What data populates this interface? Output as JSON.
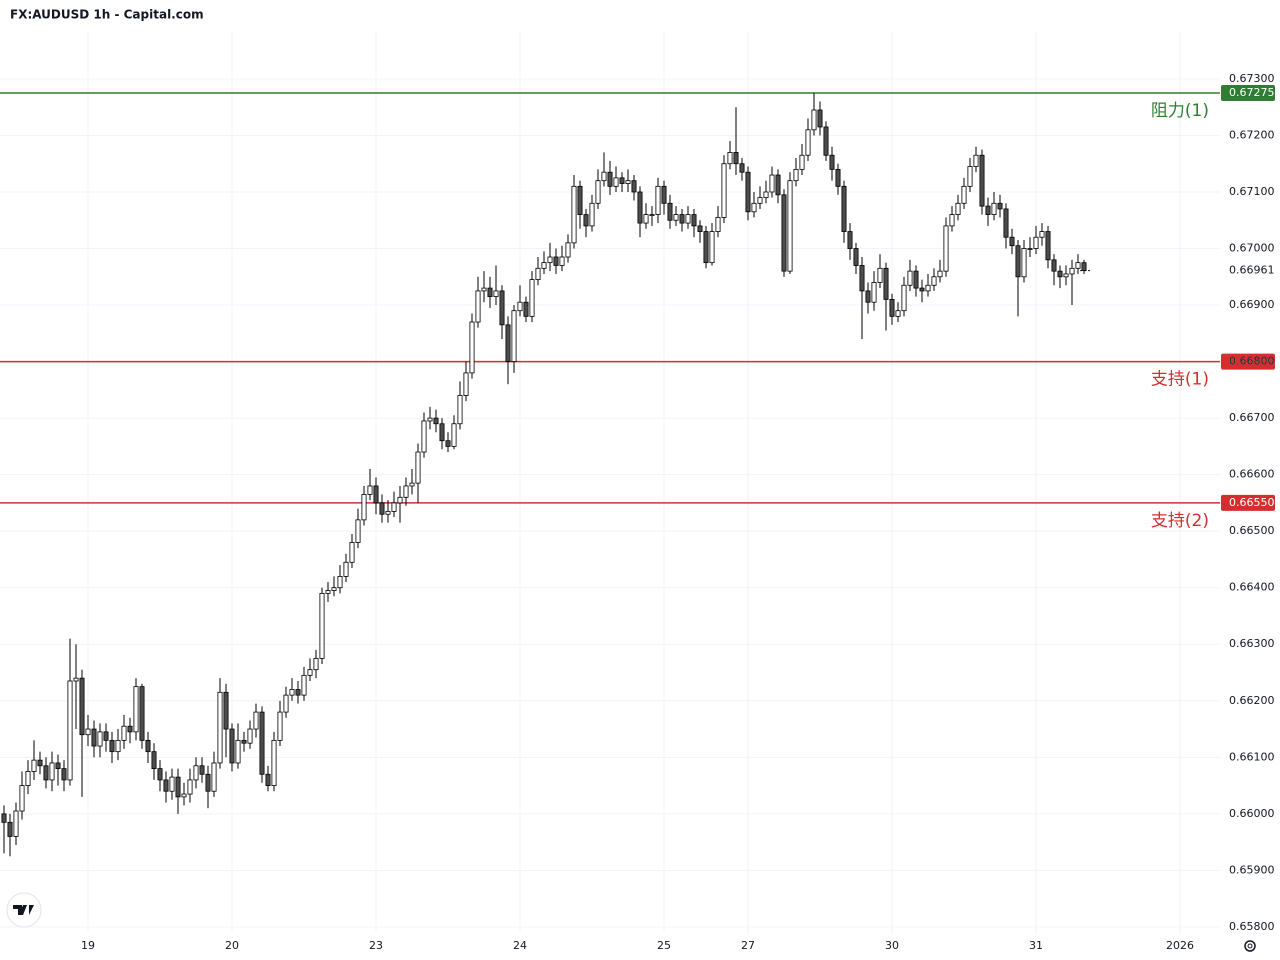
{
  "chart_data": {
    "type": "candlestick",
    "title": "FX:AUDUSD 1h - Capital.com",
    "up_color": "#ffffff",
    "down_color": "#4d4d4d",
    "wick_color": "#000000",
    "grid": true,
    "xlim": [
      -0.667,
      202.667
    ],
    "xticks": [
      {
        "value": 14,
        "label": "19"
      },
      {
        "value": 38,
        "label": "20"
      },
      {
        "value": 62,
        "label": "23"
      },
      {
        "value": 86,
        "label": "24"
      },
      {
        "value": 110,
        "label": "25"
      },
      {
        "value": 124,
        "label": "27"
      },
      {
        "value": 148,
        "label": "30"
      },
      {
        "value": 172,
        "label": "31"
      },
      {
        "value": 196,
        "label": "2026"
      }
    ],
    "ylim": [
      0.65791,
      0.67383
    ],
    "yticks": [
      {
        "value": 0.658,
        "label": "0.65800"
      },
      {
        "value": 0.659,
        "label": "0.65900"
      },
      {
        "value": 0.66,
        "label": "0.66000"
      },
      {
        "value": 0.661,
        "label": "0.66100"
      },
      {
        "value": 0.662,
        "label": "0.66200"
      },
      {
        "value": 0.663,
        "label": "0.66300"
      },
      {
        "value": 0.664,
        "label": "0.66400"
      },
      {
        "value": 0.665,
        "label": "0.66500"
      },
      {
        "value": 0.666,
        "label": "0.66600"
      },
      {
        "value": 0.667,
        "label": "0.66700"
      },
      {
        "value": 0.668,
        "label": "0.66800"
      },
      {
        "value": 0.669,
        "label": "0.66900"
      },
      {
        "value": 0.67,
        "label": "0.67000"
      },
      {
        "value": 0.671,
        "label": "0.67100"
      },
      {
        "value": 0.672,
        "label": "0.67200"
      },
      {
        "value": 0.673,
        "label": "0.67300"
      }
    ],
    "levels": [
      {
        "name": "阻力(1)",
        "value": 0.67275,
        "color": "#2e7d32"
      },
      {
        "name": "支持(1)",
        "value": 0.668,
        "price_label": "0.66800",
        "color": "#d32f2f"
      },
      {
        "name": "支持(2)",
        "value": 0.6655,
        "price_label": "0.66550",
        "color": "#d32f2f"
      }
    ],
    "last_price": 0.66961,
    "open": [
      0.66,
      0.65985,
      0.6596,
      0.66005,
      0.6605,
      0.66075,
      0.66095,
      0.66085,
      0.6606,
      0.6609,
      0.6608,
      0.6606,
      0.66235,
      0.6624,
      0.6614,
      0.6615,
      0.6612,
      0.66145,
      0.6613,
      0.6611,
      0.6613,
      0.66155,
      0.66145,
      0.66225,
      0.6613,
      0.6611,
      0.6608,
      0.6606,
      0.6604,
      0.66065,
      0.6603,
      0.66035,
      0.6606,
      0.66085,
      0.6607,
      0.6604,
      0.6609,
      0.66215,
      0.6615,
      0.6609,
      0.6613,
      0.66125,
      0.6615,
      0.6618,
      0.6607,
      0.6605,
      0.6613,
      0.6618,
      0.6621,
      0.6622,
      0.6621,
      0.66245,
      0.66255,
      0.66275,
      0.6639,
      0.66395,
      0.664,
      0.6642,
      0.66445,
      0.6648,
      0.6652,
      0.66565,
      0.6658,
      0.6655,
      0.6653,
      0.66535,
      0.6655,
      0.6656,
      0.6658,
      0.66585,
      0.6664,
      0.66695,
      0.667,
      0.6669,
      0.6666,
      0.6665,
      0.6669,
      0.6674,
      0.6678,
      0.6687,
      0.66925,
      0.6693,
      0.66915,
      0.66925,
      0.66865,
      0.668,
      0.6689,
      0.66905,
      0.6688,
      0.66945,
      0.66965,
      0.66975,
      0.66985,
      0.6697,
      0.66985,
      0.6701,
      0.6711,
      0.6706,
      0.6704,
      0.6708,
      0.6712,
      0.67135,
      0.6711,
      0.67125,
      0.67115,
      0.6712,
      0.671,
      0.67045,
      0.6706,
      0.6706,
      0.6711,
      0.6708,
      0.6705,
      0.6706,
      0.67045,
      0.6706,
      0.6704,
      0.6703,
      0.66975,
      0.6703,
      0.67055,
      0.6715,
      0.6717,
      0.6715,
      0.67135,
      0.67065,
      0.6708,
      0.6709,
      0.671,
      0.6713,
      0.67095,
      0.6696,
      0.6712,
      0.6714,
      0.67165,
      0.6721,
      0.67245,
      0.67215,
      0.67165,
      0.6714,
      0.6711,
      0.6703,
      0.67,
      0.6697,
      0.66925,
      0.66905,
      0.6694,
      0.66965,
      0.6691,
      0.6688,
      0.6689,
      0.66935,
      0.6696,
      0.6693,
      0.66925,
      0.66935,
      0.6695,
      0.6696,
      0.6704,
      0.6706,
      0.6708,
      0.6711,
      0.67145,
      0.67165,
      0.67075,
      0.6706,
      0.6708,
      0.6707,
      0.6702,
      0.67005,
      0.6695,
      0.67,
      0.67,
      0.6702,
      0.6703,
      0.6698,
      0.6696,
      0.6695,
      0.66955,
      0.66965,
      0.66975
    ],
    "high": [
      0.66015,
      0.66,
      0.6602,
      0.66075,
      0.66095,
      0.6613,
      0.6611,
      0.661,
      0.6611,
      0.66105,
      0.66095,
      0.6631,
      0.663,
      0.66255,
      0.66175,
      0.66165,
      0.6616,
      0.6616,
      0.66145,
      0.6615,
      0.66175,
      0.6617,
      0.6624,
      0.6623,
      0.66145,
      0.66125,
      0.66095,
      0.66075,
      0.6608,
      0.6608,
      0.66055,
      0.6608,
      0.661,
      0.661,
      0.66085,
      0.6611,
      0.6624,
      0.6623,
      0.6616,
      0.6616,
      0.66145,
      0.66165,
      0.66195,
      0.6619,
      0.66085,
      0.66145,
      0.662,
      0.66225,
      0.6624,
      0.66235,
      0.6626,
      0.66275,
      0.6629,
      0.664,
      0.6641,
      0.6642,
      0.6644,
      0.6646,
      0.66495,
      0.6654,
      0.6658,
      0.6661,
      0.66595,
      0.66565,
      0.66555,
      0.6657,
      0.6658,
      0.66595,
      0.6661,
      0.66655,
      0.6671,
      0.6672,
      0.66715,
      0.667,
      0.66675,
      0.66705,
      0.66765,
      0.668,
      0.66885,
      0.6695,
      0.6696,
      0.6695,
      0.6697,
      0.66935,
      0.6688,
      0.669,
      0.66935,
      0.66915,
      0.6696,
      0.66985,
      0.66995,
      0.6701,
      0.67,
      0.67005,
      0.67025,
      0.6713,
      0.6712,
      0.6707,
      0.67095,
      0.6714,
      0.6717,
      0.67155,
      0.67145,
      0.67135,
      0.6714,
      0.6713,
      0.6711,
      0.6708,
      0.67075,
      0.67125,
      0.6712,
      0.67095,
      0.67075,
      0.6707,
      0.67075,
      0.6707,
      0.6705,
      0.6704,
      0.67045,
      0.67075,
      0.67165,
      0.6719,
      0.6725,
      0.6716,
      0.67145,
      0.671,
      0.6711,
      0.6712,
      0.67145,
      0.6714,
      0.67105,
      0.67135,
      0.6716,
      0.67185,
      0.6723,
      0.67275,
      0.6726,
      0.67225,
      0.6718,
      0.6715,
      0.6712,
      0.67045,
      0.6701,
      0.66985,
      0.6694,
      0.6696,
      0.6699,
      0.66975,
      0.6692,
      0.66905,
      0.6695,
      0.6698,
      0.6697,
      0.66945,
      0.66955,
      0.66965,
      0.6698,
      0.67055,
      0.67075,
      0.67095,
      0.67125,
      0.6716,
      0.6718,
      0.67175,
      0.6709,
      0.671,
      0.67095,
      0.6708,
      0.67035,
      0.67015,
      0.67015,
      0.6702,
      0.6704,
      0.67045,
      0.6704,
      0.6699,
      0.6697,
      0.6697,
      0.6698,
      0.6699,
      0.6698
    ],
    "low": [
      0.6593,
      0.65925,
      0.65945,
      0.6599,
      0.66035,
      0.6606,
      0.6607,
      0.66045,
      0.6604,
      0.6605,
      0.6604,
      0.6605,
      0.6615,
      0.6603,
      0.6612,
      0.661,
      0.661,
      0.6611,
      0.6609,
      0.66095,
      0.66115,
      0.66125,
      0.6613,
      0.66115,
      0.6609,
      0.6606,
      0.6604,
      0.6602,
      0.66025,
      0.66,
      0.66015,
      0.6602,
      0.66045,
      0.66055,
      0.6601,
      0.6603,
      0.6608,
      0.661,
      0.66075,
      0.6608,
      0.6611,
      0.66115,
      0.66135,
      0.66055,
      0.6604,
      0.6604,
      0.6612,
      0.6617,
      0.662,
      0.66195,
      0.662,
      0.66235,
      0.6624,
      0.66265,
      0.66375,
      0.66385,
      0.6639,
      0.6641,
      0.66435,
      0.6647,
      0.6651,
      0.66555,
      0.6653,
      0.66515,
      0.66515,
      0.66525,
      0.66515,
      0.66545,
      0.66565,
      0.6655,
      0.6663,
      0.6668,
      0.66675,
      0.66645,
      0.6664,
      0.66645,
      0.6668,
      0.6673,
      0.6677,
      0.6686,
      0.66905,
      0.66895,
      0.669,
      0.6684,
      0.6676,
      0.6678,
      0.6688,
      0.6687,
      0.6687,
      0.66935,
      0.66955,
      0.6696,
      0.66955,
      0.6696,
      0.66975,
      0.67,
      0.67035,
      0.6702,
      0.6703,
      0.6707,
      0.6711,
      0.67095,
      0.671,
      0.671,
      0.671,
      0.67085,
      0.6702,
      0.67035,
      0.6704,
      0.67045,
      0.6706,
      0.67035,
      0.6704,
      0.6703,
      0.67035,
      0.6702,
      0.6701,
      0.66965,
      0.6697,
      0.6702,
      0.67045,
      0.6714,
      0.6713,
      0.6712,
      0.6705,
      0.67055,
      0.6707,
      0.6708,
      0.6709,
      0.6708,
      0.6695,
      0.66955,
      0.6711,
      0.6713,
      0.67155,
      0.672,
      0.672,
      0.67155,
      0.6712,
      0.67095,
      0.6701,
      0.6698,
      0.66955,
      0.6684,
      0.66885,
      0.6689,
      0.6693,
      0.66855,
      0.66865,
      0.6687,
      0.6688,
      0.66925,
      0.66915,
      0.66905,
      0.66915,
      0.66925,
      0.6694,
      0.6695,
      0.6703,
      0.6705,
      0.6707,
      0.671,
      0.67135,
      0.6706,
      0.6704,
      0.6705,
      0.67055,
      0.67,
      0.6699,
      0.6688,
      0.6694,
      0.66985,
      0.6699,
      0.67005,
      0.66965,
      0.66935,
      0.6693,
      0.66935,
      0.669,
      0.66955,
      0.66955
    ],
    "close": [
      0.65985,
      0.6596,
      0.66005,
      0.6605,
      0.66075,
      0.66095,
      0.66085,
      0.6606,
      0.6609,
      0.6608,
      0.6606,
      0.66235,
      0.6624,
      0.6614,
      0.6615,
      0.6612,
      0.66145,
      0.6613,
      0.6611,
      0.6613,
      0.66155,
      0.66145,
      0.66225,
      0.6613,
      0.6611,
      0.6608,
      0.6606,
      0.6604,
      0.66065,
      0.6603,
      0.66035,
      0.6606,
      0.66085,
      0.6607,
      0.6604,
      0.6609,
      0.66215,
      0.6615,
      0.6609,
      0.6613,
      0.66125,
      0.6615,
      0.6618,
      0.6607,
      0.6605,
      0.6613,
      0.6618,
      0.6621,
      0.6622,
      0.6621,
      0.66245,
      0.66255,
      0.66275,
      0.6639,
      0.66395,
      0.664,
      0.6642,
      0.66445,
      0.6648,
      0.6652,
      0.66565,
      0.6658,
      0.6655,
      0.6653,
      0.66535,
      0.6655,
      0.6656,
      0.6658,
      0.66585,
      0.6664,
      0.66695,
      0.667,
      0.6669,
      0.6666,
      0.6665,
      0.6669,
      0.6674,
      0.6678,
      0.6687,
      0.66925,
      0.6693,
      0.66915,
      0.66925,
      0.66865,
      0.668,
      0.6689,
      0.66905,
      0.6688,
      0.66945,
      0.66965,
      0.66975,
      0.66985,
      0.6697,
      0.66985,
      0.6701,
      0.6711,
      0.6706,
      0.6704,
      0.6708,
      0.6712,
      0.67135,
      0.6711,
      0.67125,
      0.67115,
      0.6712,
      0.671,
      0.67045,
      0.6706,
      0.6706,
      0.6711,
      0.6708,
      0.6705,
      0.6706,
      0.67045,
      0.6706,
      0.6704,
      0.6703,
      0.66975,
      0.6703,
      0.67055,
      0.6715,
      0.6717,
      0.6715,
      0.67135,
      0.67065,
      0.6708,
      0.6709,
      0.671,
      0.6713,
      0.67095,
      0.6696,
      0.6712,
      0.6714,
      0.67165,
      0.6721,
      0.67245,
      0.67215,
      0.67165,
      0.6714,
      0.6711,
      0.6703,
      0.67,
      0.6697,
      0.66925,
      0.66905,
      0.6694,
      0.66965,
      0.6691,
      0.6688,
      0.6689,
      0.66935,
      0.6696,
      0.6693,
      0.66925,
      0.66935,
      0.6695,
      0.6696,
      0.6704,
      0.6706,
      0.6708,
      0.6711,
      0.67145,
      0.67165,
      0.67075,
      0.6706,
      0.6708,
      0.6707,
      0.6702,
      0.67005,
      0.6695,
      0.67,
      0.67,
      0.6702,
      0.6703,
      0.6698,
      0.6696,
      0.6695,
      0.66955,
      0.66965,
      0.66975,
      0.66961
    ]
  }
}
